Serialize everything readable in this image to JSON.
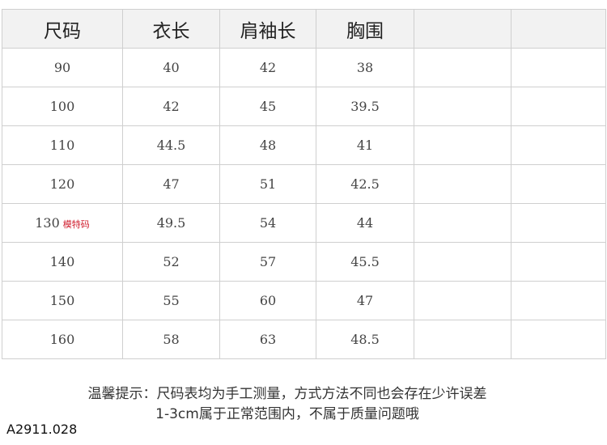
{
  "table": {
    "headers": [
      "尺码",
      "衣长",
      "肩袖长",
      "胸围",
      "",
      ""
    ],
    "rows": [
      [
        "90",
        "40",
        "42",
        "38",
        "",
        ""
      ],
      [
        "100",
        "42",
        "45",
        "39.5",
        "",
        ""
      ],
      [
        "110",
        "44.5",
        "48",
        "41",
        "",
        ""
      ],
      [
        "120",
        "47",
        "51",
        "42.5",
        "",
        ""
      ],
      [
        "130",
        "49.5",
        "54",
        "44",
        "",
        ""
      ],
      [
        "140",
        "52",
        "57",
        "45.5",
        "",
        ""
      ],
      [
        "150",
        "55",
        "60",
        "47",
        "",
        ""
      ],
      [
        "160",
        "58",
        "63",
        "48.5",
        "",
        ""
      ]
    ],
    "model_size_tag": "模特码",
    "model_size_row": 4
  },
  "note": {
    "line1": "温馨提示：尺码表均为手工测量，方式方法不同也会存在少许误差",
    "line2": "1-3cm属于正常范围内，不属于质量问题哦"
  },
  "product_code": "A2911.028",
  "colors": {
    "header_bg": "#f2f2f2",
    "tag": "#d02030"
  }
}
